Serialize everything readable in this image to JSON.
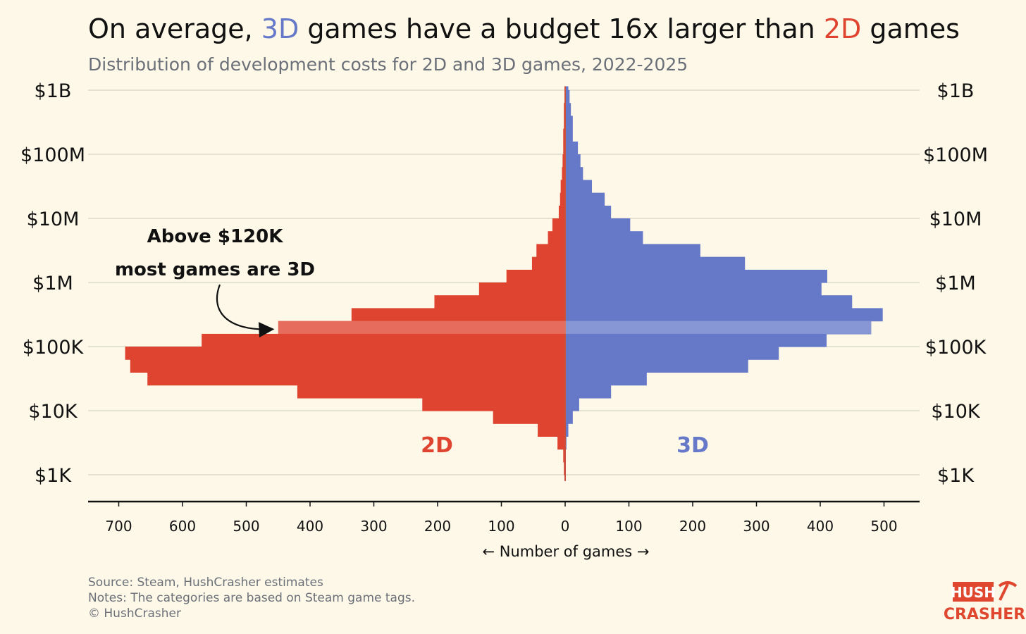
{
  "title": {
    "part1": "On average, ",
    "part2": "3D",
    "part3": " games have a budget 16x larger than ",
    "part4": "2D",
    "part5": " games"
  },
  "subtitle": "Distribution of development costs for 2D and 3D games, 2022-2025",
  "footer": {
    "source": "Source: Steam, HushCrasher estimates",
    "notes": "Notes: The categories are based on Steam game tags.",
    "copyright": "© HushCrasher"
  },
  "logo": {
    "line1": "HUSH",
    "line2": "CRASHER"
  },
  "colors": {
    "2d": "#df4430",
    "3d": "#6679c9",
    "background": "#fdf8e8",
    "highlight": "#ffffff"
  },
  "chart_data": {
    "type": "bar",
    "orientation": "horizontal back-to-back histogram",
    "xlabel": "← Number of games →",
    "ylabel": "",
    "y_scale": "log",
    "ylim": [
      700,
      1300000000
    ],
    "y_ticks": [
      {
        "value": 1000,
        "label": "$1K"
      },
      {
        "value": 10000,
        "label": "$10K"
      },
      {
        "value": 100000,
        "label": "$100K"
      },
      {
        "value": 1000000,
        "label": "$1M"
      },
      {
        "value": 10000000,
        "label": "$10M"
      },
      {
        "value": 100000000,
        "label": "$100M"
      },
      {
        "value": 1000000000,
        "label": "$1B"
      }
    ],
    "x_ticks_left": [
      "700",
      "600",
      "500",
      "400",
      "300",
      "200",
      "100",
      "0"
    ],
    "x_ticks_left_values": [
      700,
      600,
      500,
      400,
      300,
      200,
      100,
      0
    ],
    "x_ticks_right": [
      "100",
      "200",
      "300",
      "400",
      "500"
    ],
    "x_ticks_right_values": [
      100,
      200,
      300,
      400,
      500
    ],
    "xlim_left": 750,
    "xlim_right": 560,
    "grid": true,
    "bin_log10_width": 0.2,
    "series": [
      {
        "name": "2D",
        "bins": [
          {
            "lo": 1000,
            "hi": 1580,
            "count": 2
          },
          {
            "lo": 1580,
            "hi": 2510,
            "count": 3
          },
          {
            "lo": 2510,
            "hi": 3980,
            "count": 12
          },
          {
            "lo": 3980,
            "hi": 6310,
            "count": 43
          },
          {
            "lo": 6310,
            "hi": 10000,
            "count": 113
          },
          {
            "lo": 10000,
            "hi": 15800,
            "count": 224
          },
          {
            "lo": 15800,
            "hi": 25100,
            "count": 420
          },
          {
            "lo": 25100,
            "hi": 39800,
            "count": 655
          },
          {
            "lo": 39800,
            "hi": 63100,
            "count": 682
          },
          {
            "lo": 63100,
            "hi": 100000,
            "count": 690
          },
          {
            "lo": 100000,
            "hi": 158000,
            "count": 570
          },
          {
            "lo": 158000,
            "hi": 251000,
            "count": 450
          },
          {
            "lo": 251000,
            "hi": 398000,
            "count": 335
          },
          {
            "lo": 398000,
            "hi": 631000,
            "count": 205
          },
          {
            "lo": 631000,
            "hi": 1000000,
            "count": 135
          },
          {
            "lo": 1000000,
            "hi": 1580000,
            "count": 92
          },
          {
            "lo": 1580000,
            "hi": 2510000,
            "count": 52
          },
          {
            "lo": 2510000,
            "hi": 3980000,
            "count": 45
          },
          {
            "lo": 3980000,
            "hi": 6310000,
            "count": 27
          },
          {
            "lo": 6310000,
            "hi": 10000000,
            "count": 20
          },
          {
            "lo": 10000000,
            "hi": 15800000,
            "count": 10
          },
          {
            "lo": 15800000,
            "hi": 25100000,
            "count": 8
          },
          {
            "lo": 25100000,
            "hi": 39800000,
            "count": 7
          },
          {
            "lo": 39800000,
            "hi": 63100000,
            "count": 5
          },
          {
            "lo": 63100000,
            "hi": 100000000,
            "count": 4
          },
          {
            "lo": 100000000,
            "hi": 158000000,
            "count": 3
          },
          {
            "lo": 158000000,
            "hi": 251000000,
            "count": 3
          },
          {
            "lo": 251000000,
            "hi": 398000000,
            "count": 2
          },
          {
            "lo": 398000000,
            "hi": 631000000,
            "count": 2
          },
          {
            "lo": 631000000,
            "hi": 1000000000,
            "count": 1
          }
        ]
      },
      {
        "name": "3D",
        "bins": [
          {
            "lo": 1580,
            "hi": 2510,
            "count": 1
          },
          {
            "lo": 2510,
            "hi": 3980,
            "count": 2
          },
          {
            "lo": 3980,
            "hi": 6310,
            "count": 5
          },
          {
            "lo": 6310,
            "hi": 10000,
            "count": 12
          },
          {
            "lo": 10000,
            "hi": 15800,
            "count": 22
          },
          {
            "lo": 15800,
            "hi": 25100,
            "count": 72
          },
          {
            "lo": 25100,
            "hi": 39800,
            "count": 128
          },
          {
            "lo": 39800,
            "hi": 63100,
            "count": 287
          },
          {
            "lo": 63100,
            "hi": 100000,
            "count": 335
          },
          {
            "lo": 100000,
            "hi": 158000,
            "count": 410
          },
          {
            "lo": 158000,
            "hi": 251000,
            "count": 480
          },
          {
            "lo": 251000,
            "hi": 398000,
            "count": 498
          },
          {
            "lo": 398000,
            "hi": 631000,
            "count": 450
          },
          {
            "lo": 631000,
            "hi": 1000000,
            "count": 402
          },
          {
            "lo": 1000000,
            "hi": 1580000,
            "count": 411
          },
          {
            "lo": 1580000,
            "hi": 2510000,
            "count": 282
          },
          {
            "lo": 2510000,
            "hi": 3980000,
            "count": 212
          },
          {
            "lo": 3980000,
            "hi": 6310000,
            "count": 122
          },
          {
            "lo": 6310000,
            "hi": 10000000,
            "count": 102
          },
          {
            "lo": 10000000,
            "hi": 15800000,
            "count": 72
          },
          {
            "lo": 15800000,
            "hi": 25100000,
            "count": 62
          },
          {
            "lo": 25100000,
            "hi": 39800000,
            "count": 42
          },
          {
            "lo": 39800000,
            "hi": 63100000,
            "count": 28
          },
          {
            "lo": 63100000,
            "hi": 100000000,
            "count": 24
          },
          {
            "lo": 100000000,
            "hi": 158000000,
            "count": 20
          },
          {
            "lo": 158000000,
            "hi": 251000000,
            "count": 12
          },
          {
            "lo": 251000000,
            "hi": 398000000,
            "count": 12
          },
          {
            "lo": 398000000,
            "hi": 631000000,
            "count": 9
          },
          {
            "lo": 631000000,
            "hi": 1000000000,
            "count": 7
          },
          {
            "lo": 1000000000,
            "hi": 1150000000,
            "count": 5
          }
        ]
      }
    ],
    "highlight_threshold": 120000,
    "annotations": [
      {
        "line1": "Above $120K",
        "line2": "most games are 3D",
        "points_to": 120000
      }
    ],
    "series_labels": [
      "2D",
      "3D"
    ]
  }
}
